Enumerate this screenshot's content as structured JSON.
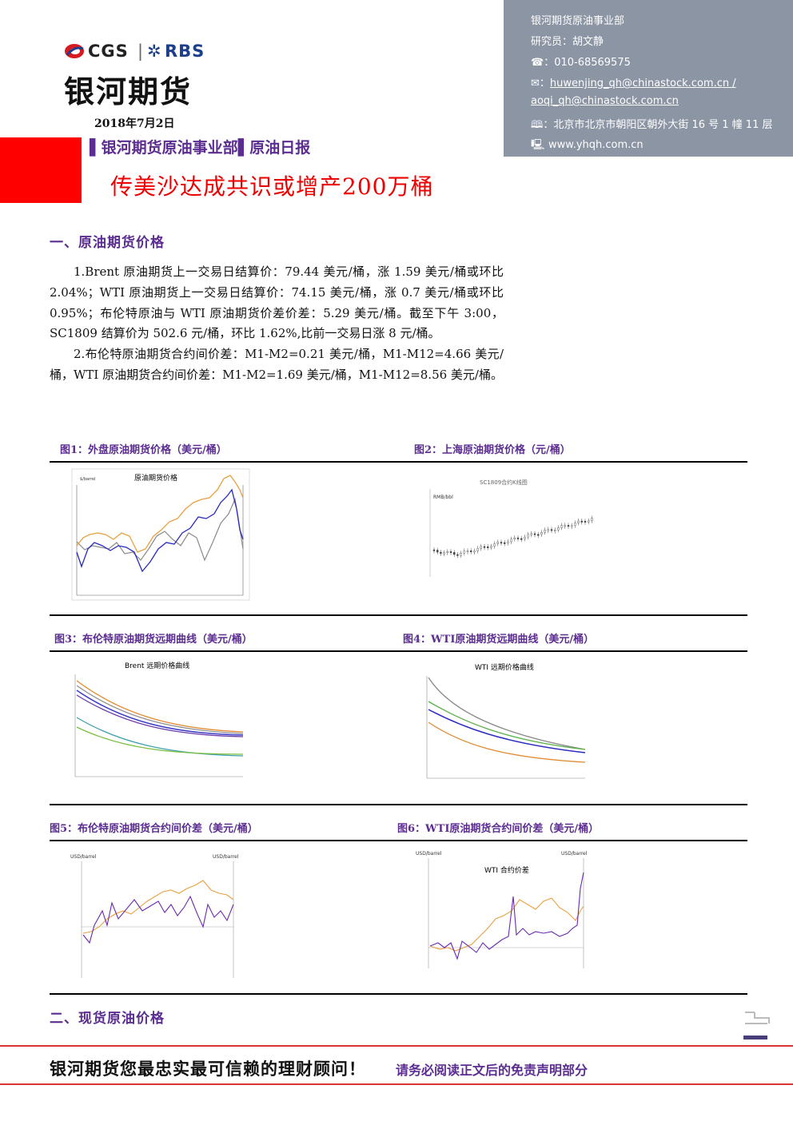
{
  "header": {
    "logo_cgs": "CGS",
    "logo_rbs": "RBS",
    "logo_cn": "银河期货",
    "date": "2018年7月2日",
    "dept": "▌银河期货原油事业部▌原油日报",
    "headline": "传美沙达成共识或增产200万桶"
  },
  "contact": {
    "dept": "银河期货原油事业部",
    "researcher": "研究员：胡文静",
    "phone_icon": "☎",
    "phone": "：010-68569575",
    "email_icon": "✉",
    "email1": "huwenjing_qh@chinastock.com.cn /",
    "email2": "aoqi_qh@chinastock.com.cn",
    "addr_icon": "🕮",
    "address": "：北京市北京市朝阳区朝外大街 16 号 1 幢 11 层",
    "web_icon": "🖳",
    "website": "www.yhqh.com.cn"
  },
  "section1": {
    "title": "一、原油期货价格",
    "p1": "1.Brent 原油期货上一交易日结算价：79.44 美元/桶，涨 1.59 美元/桶或环比 2.04%；WTI 原油期货上一交易日结算价：74.15 美元/桶，涨 0.7 美元/桶或环比 0.95%；布伦特原油与 WTI 原油期货价差价差：5.29 美元/桶。截至下午 3:00，SC1809 结算价为 502.6 元/桶，环比 1.62%,比前一交易日涨 8 元/桶。",
    "p2": "2.布伦特原油期货合约间价差：M1-M2=0.21 美元/桶，M1-M12=4.66 美元/桶，WTI 原油期货合约间价差：M1-M2=1.69 美元/桶，M1-M12=8.56 美元/桶。"
  },
  "figures": {
    "f1": "图1：外盘原油期货价格（美元/桶）",
    "f2": "图2：上海原油期货价格（元/桶）",
    "f3": "图3：布伦特原油期货远期曲线（美元/桶）",
    "f4": "图4：WTI原油期货远期曲线（美元/桶）",
    "f5": "图5：布伦特原油期货合约间价差（美元/桶）",
    "f6": "图6：WTI原油期货合约间价差（美元/桶）"
  },
  "chart_texts": {
    "c1_title": "原油期货价格",
    "c1_unit": "$/barrel",
    "c2_title": "SC1809合约K线图",
    "c2_unit": "RMB/bbl",
    "c3_title": "Brent 远期价格曲线",
    "c4_title": "WTI 远期价格曲线",
    "c5_unit_l": "USD/barrel",
    "c5_unit_r": "USD/barrel",
    "c6_unit_l": "USD/barrel",
    "c6_unit_r": "USD/barrel",
    "c6_title": "WTI 合约价差"
  },
  "section2": {
    "title": "二、现货原油价格"
  },
  "footer": {
    "slogan": "银河期货您最忠实最可信赖的理财顾问！",
    "disclaimer": "请务必阅读正文后的免责声明部分"
  },
  "colors": {
    "purple": "#5b2d90",
    "red": "#ff0000",
    "contact_bg": "#8b95a4"
  },
  "chart_data": [
    {
      "type": "line",
      "title": "原油期货价格",
      "ylabel": "$/barrel"
    },
    {
      "type": "bar",
      "title": "SC1809合约K线图",
      "ylabel": "RMB/bbl"
    },
    {
      "type": "line",
      "title": "Brent 远期价格曲线"
    },
    {
      "type": "line",
      "title": "WTI 远期价格曲线"
    },
    {
      "type": "line",
      "ylabel": "USD/barrel"
    },
    {
      "type": "line",
      "title": "WTI 合约价差",
      "ylabel": "USD/barrel"
    }
  ]
}
